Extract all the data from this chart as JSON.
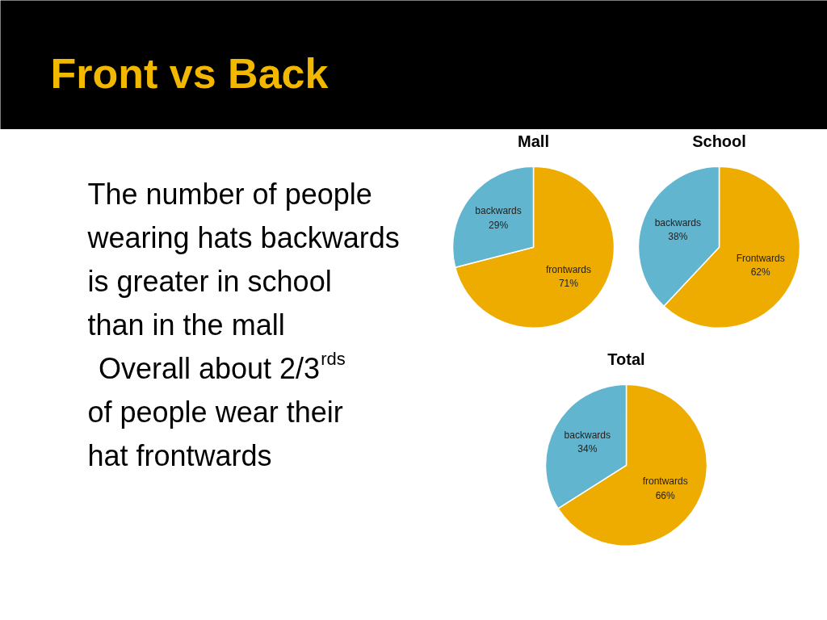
{
  "chart_data": [
    {
      "type": "other",
      "title": "Front vs Back",
      "annotations": [
        "The number of people wearing hats backwards is greater in school than in the mall",
        "Overall about 2/3$^{rds}$ of people wear their hat frontwards"
      ]
    },
    {
      "type": "pie",
      "title": "Mall",
      "categories": [
        "frontwards",
        "backwards"
      ],
      "values": [
        71,
        29
      ],
      "colors": [
        "#eeac00",
        "#62b5cf"
      ],
      "value_labels": [
        "71%",
        "29%"
      ]
    },
    {
      "type": "pie",
      "title": "School",
      "categories": [
        "Frontwards",
        "backwards"
      ],
      "values": [
        62,
        38
      ],
      "colors": [
        "#eeac00",
        "#62b5cf"
      ],
      "value_labels": [
        "62%",
        "38%"
      ]
    },
    {
      "type": "pie",
      "title": "Total",
      "categories": [
        "frontwards",
        "backwards"
      ],
      "values": [
        66,
        34
      ],
      "colors": [
        "#eeac00",
        "#62b5cf"
      ],
      "value_labels": [
        "66%",
        "34%"
      ]
    }
  ]
}
